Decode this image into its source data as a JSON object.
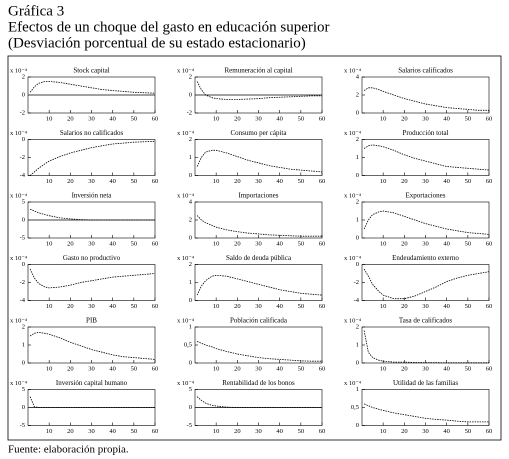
{
  "header": {
    "title": "Gráfica 3",
    "subtitle": "Efectos de un choque del gasto en educación superior",
    "subtitle2": "(Desviación porcentual de su estado estacionario)"
  },
  "footer": "Fuente: elaboración propia.",
  "chart_data": [
    {
      "type": "line",
      "title": "Stock capital",
      "scale_label": "x 10⁻⁴",
      "x": [
        1,
        3,
        5,
        8,
        10,
        15,
        20,
        25,
        30,
        35,
        40,
        45,
        50,
        55,
        60
      ],
      "values": [
        0.3,
        0.9,
        1.3,
        1.5,
        1.5,
        1.4,
        1.2,
        1.0,
        0.8,
        0.6,
        0.5,
        0.4,
        0.3,
        0.25,
        0.2
      ],
      "xlim": [
        0,
        60
      ],
      "xticks": [
        10,
        20,
        30,
        40,
        50,
        60
      ],
      "ylim": [
        -2,
        2
      ],
      "yticks": [
        -2,
        0,
        2
      ],
      "color": "#000000"
    },
    {
      "type": "line",
      "title": "Remuneración al capital",
      "scale_label": "x 10⁻⁴",
      "x": [
        1,
        3,
        5,
        8,
        10,
        15,
        20,
        25,
        30,
        35,
        40,
        45,
        50,
        55,
        60
      ],
      "values": [
        1.5,
        0.6,
        0.0,
        -0.3,
        -0.4,
        -0.5,
        -0.5,
        -0.45,
        -0.4,
        -0.3,
        -0.25,
        -0.2,
        -0.15,
        -0.1,
        -0.1
      ],
      "xlim": [
        0,
        60
      ],
      "xticks": [
        10,
        20,
        30,
        40,
        50,
        60
      ],
      "ylim": [
        -2,
        2
      ],
      "yticks": [
        -2,
        0,
        2
      ],
      "color": "#000000"
    },
    {
      "type": "line",
      "title": "Salarios calificados",
      "scale_label": "x 10⁻⁴",
      "x": [
        1,
        3,
        5,
        8,
        10,
        15,
        20,
        25,
        30,
        35,
        40,
        45,
        50,
        55,
        60
      ],
      "values": [
        2.5,
        2.8,
        2.8,
        2.6,
        2.4,
        2.0,
        1.6,
        1.3,
        1.0,
        0.8,
        0.6,
        0.5,
        0.4,
        0.3,
        0.3
      ],
      "xlim": [
        0,
        60
      ],
      "xticks": [
        10,
        20,
        30,
        40,
        50,
        60
      ],
      "ylim": [
        0,
        4
      ],
      "yticks": [
        0,
        2,
        4
      ],
      "color": "#000000"
    },
    {
      "type": "line",
      "title": "Salarios no calificados",
      "scale_label": "x 10⁻⁴",
      "x": [
        1,
        3,
        5,
        8,
        10,
        15,
        20,
        25,
        30,
        35,
        40,
        45,
        50,
        55,
        60
      ],
      "values": [
        -4,
        -3.6,
        -3.2,
        -2.7,
        -2.4,
        -1.9,
        -1.5,
        -1.2,
        -0.9,
        -0.7,
        -0.5,
        -0.4,
        -0.3,
        -0.25,
        -0.2
      ],
      "xlim": [
        0,
        60
      ],
      "xticks": [
        10,
        20,
        30,
        40,
        50,
        60
      ],
      "ylim": [
        -4,
        0
      ],
      "yticks": [
        -4,
        -2,
        0
      ],
      "color": "#000000"
    },
    {
      "type": "line",
      "title": "Consumo per cápita",
      "scale_label": "x 10⁻⁴",
      "x": [
        1,
        3,
        5,
        8,
        10,
        15,
        20,
        25,
        30,
        35,
        40,
        45,
        50,
        55,
        60
      ],
      "values": [
        0.5,
        1.0,
        1.3,
        1.4,
        1.4,
        1.25,
        1.05,
        0.85,
        0.7,
        0.55,
        0.45,
        0.35,
        0.3,
        0.25,
        0.2
      ],
      "xlim": [
        0,
        60
      ],
      "xticks": [
        10,
        20,
        30,
        40,
        50,
        60
      ],
      "ylim": [
        0,
        2
      ],
      "yticks": [
        0,
        1,
        2
      ],
      "color": "#000000"
    },
    {
      "type": "line",
      "title": "Producción total",
      "scale_label": "x 10⁻⁴",
      "x": [
        1,
        3,
        5,
        8,
        10,
        15,
        20,
        25,
        30,
        35,
        40,
        45,
        50,
        55,
        60
      ],
      "values": [
        1.5,
        1.65,
        1.7,
        1.65,
        1.6,
        1.4,
        1.15,
        0.95,
        0.8,
        0.65,
        0.5,
        0.45,
        0.4,
        0.35,
        0.3
      ],
      "xlim": [
        0,
        60
      ],
      "xticks": [
        10,
        20,
        30,
        40,
        50,
        60
      ],
      "ylim": [
        0,
        2
      ],
      "yticks": [
        0,
        1,
        2
      ],
      "color": "#000000"
    },
    {
      "type": "line",
      "title": "Inversión neta",
      "scale_label": "x 10⁻⁴",
      "x": [
        1,
        3,
        5,
        8,
        10,
        15,
        20,
        25,
        30,
        35,
        40,
        45,
        50,
        55,
        60
      ],
      "values": [
        3,
        2.5,
        2,
        1.5,
        1.2,
        0.6,
        0.3,
        0.1,
        0,
        0,
        0,
        0,
        0,
        0,
        0
      ],
      "xlim": [
        0,
        60
      ],
      "xticks": [
        10,
        20,
        30,
        40,
        50,
        60
      ],
      "ylim": [
        -5,
        5
      ],
      "yticks": [
        -5,
        0,
        5
      ],
      "color": "#000000"
    },
    {
      "type": "line",
      "title": "Importaciones",
      "scale_label": "x 10⁻⁴",
      "x": [
        1,
        3,
        5,
        8,
        10,
        15,
        20,
        25,
        30,
        35,
        40,
        45,
        50,
        55,
        60
      ],
      "values": [
        2.5,
        2.0,
        1.7,
        1.4,
        1.2,
        0.9,
        0.7,
        0.55,
        0.45,
        0.35,
        0.3,
        0.25,
        0.2,
        0.2,
        0.2
      ],
      "xlim": [
        0,
        60
      ],
      "xticks": [
        10,
        20,
        30,
        40,
        50,
        60
      ],
      "ylim": [
        0,
        4
      ],
      "yticks": [
        0,
        2,
        4
      ],
      "color": "#000000"
    },
    {
      "type": "line",
      "title": "Exportaciones",
      "scale_label": "x 10⁻⁴",
      "x": [
        1,
        3,
        5,
        8,
        10,
        15,
        20,
        25,
        30,
        35,
        40,
        45,
        50,
        55,
        60
      ],
      "values": [
        0.5,
        1.0,
        1.3,
        1.45,
        1.5,
        1.4,
        1.2,
        1.0,
        0.8,
        0.65,
        0.5,
        0.4,
        0.3,
        0.25,
        0.2
      ],
      "xlim": [
        0,
        60
      ],
      "xticks": [
        10,
        20,
        30,
        40,
        50,
        60
      ],
      "ylim": [
        0,
        2
      ],
      "yticks": [
        0,
        1,
        2
      ],
      "color": "#000000"
    },
    {
      "type": "line",
      "title": "Gasto no productivo",
      "scale_label": "x 10⁻⁴",
      "x": [
        1,
        3,
        5,
        8,
        10,
        15,
        20,
        25,
        30,
        35,
        40,
        45,
        50,
        55,
        60
      ],
      "values": [
        -0.5,
        -1.5,
        -2.1,
        -2.5,
        -2.6,
        -2.5,
        -2.3,
        -2.0,
        -1.8,
        -1.6,
        -1.4,
        -1.3,
        -1.2,
        -1.1,
        -1.0
      ],
      "xlim": [
        0,
        60
      ],
      "xticks": [
        10,
        20,
        30,
        40,
        50,
        60
      ],
      "ylim": [
        -4,
        0
      ],
      "yticks": [
        -4,
        -2,
        0
      ],
      "color": "#000000"
    },
    {
      "type": "line",
      "title": "Saldo de deuda pública",
      "scale_label": "x 10⁻⁴",
      "x": [
        1,
        3,
        5,
        8,
        10,
        15,
        20,
        25,
        30,
        35,
        40,
        45,
        50,
        55,
        60
      ],
      "values": [
        0.3,
        0.8,
        1.1,
        1.35,
        1.4,
        1.35,
        1.2,
        1.05,
        0.9,
        0.75,
        0.6,
        0.5,
        0.4,
        0.35,
        0.3
      ],
      "xlim": [
        0,
        60
      ],
      "xticks": [
        10,
        20,
        30,
        40,
        50,
        60
      ],
      "ylim": [
        0,
        2
      ],
      "yticks": [
        0,
        1,
        2
      ],
      "color": "#000000"
    },
    {
      "type": "line",
      "title": "Endeudamiento externo",
      "scale_label": "x 10⁻⁴",
      "x": [
        1,
        3,
        5,
        8,
        10,
        15,
        20,
        25,
        30,
        35,
        40,
        45,
        50,
        55,
        60
      ],
      "values": [
        -0.5,
        -1.3,
        -2.2,
        -3.0,
        -3.4,
        -3.8,
        -3.8,
        -3.5,
        -3.0,
        -2.5,
        -1.9,
        -1.5,
        -1.2,
        -1.0,
        -0.8
      ],
      "xlim": [
        0,
        60
      ],
      "xticks": [
        10,
        20,
        30,
        40,
        50,
        60
      ],
      "ylim": [
        -4,
        0
      ],
      "yticks": [
        -4,
        -2,
        0
      ],
      "color": "#000000"
    },
    {
      "type": "line",
      "title": "PIB",
      "scale_label": "x 10⁻⁴",
      "x": [
        1,
        3,
        5,
        8,
        10,
        15,
        20,
        25,
        30,
        35,
        40,
        45,
        50,
        55,
        60
      ],
      "values": [
        1.5,
        1.65,
        1.7,
        1.65,
        1.6,
        1.4,
        1.15,
        0.95,
        0.75,
        0.6,
        0.45,
        0.35,
        0.3,
        0.25,
        0.2
      ],
      "xlim": [
        0,
        60
      ],
      "xticks": [
        10,
        20,
        30,
        40,
        50,
        60
      ],
      "ylim": [
        0,
        2
      ],
      "yticks": [
        0,
        1,
        2
      ],
      "color": "#000000"
    },
    {
      "type": "line",
      "title": "Población calificada",
      "scale_label": "x 10⁻⁴",
      "x": [
        1,
        3,
        5,
        8,
        10,
        15,
        20,
        25,
        30,
        35,
        40,
        45,
        50,
        55,
        60
      ],
      "values": [
        0.6,
        0.55,
        0.5,
        0.45,
        0.4,
        0.32,
        0.25,
        0.2,
        0.15,
        0.12,
        0.1,
        0.08,
        0.06,
        0.05,
        0.05
      ],
      "xlim": [
        0,
        60
      ],
      "xticks": [
        10,
        20,
        30,
        40,
        50,
        60
      ],
      "ylim": [
        0,
        1
      ],
      "yticks": [
        0,
        {
          "value": 0.5,
          "label": "0,5"
        },
        1
      ],
      "color": "#000000"
    },
    {
      "type": "line",
      "title": "Tasa de calificados",
      "scale_label": "x 10⁻⁴",
      "x": [
        1,
        3,
        5,
        8,
        10,
        15,
        20,
        25,
        30,
        35,
        40,
        45,
        50,
        55,
        60
      ],
      "values": [
        1.8,
        0.6,
        0.3,
        0.15,
        0.1,
        0.05,
        0.05,
        0.03,
        0.02,
        0.02,
        0.01,
        0.01,
        0.01,
        0.01,
        0.01
      ],
      "xlim": [
        0,
        60
      ],
      "xticks": [
        10,
        20,
        30,
        40,
        50,
        60
      ],
      "ylim": [
        0,
        2
      ],
      "yticks": [
        0,
        1,
        2
      ],
      "color": "#000000"
    },
    {
      "type": "line",
      "title": "Inversión capital humano",
      "scale_label": "x 10⁻⁴",
      "x": [
        1,
        3,
        5,
        8,
        10,
        15,
        20,
        25,
        30,
        35,
        40,
        45,
        50,
        55,
        60
      ],
      "values": [
        3,
        0.2,
        0,
        0,
        0,
        0,
        0,
        0,
        0,
        0,
        0,
        0,
        0,
        0,
        0
      ],
      "xlim": [
        0,
        60
      ],
      "xticks": [
        10,
        20,
        30,
        40,
        50,
        60
      ],
      "ylim": [
        -5,
        5
      ],
      "yticks": [
        -5,
        0,
        5
      ],
      "color": "#000000"
    },
    {
      "type": "line",
      "title": "Rentabilidad de los bonos",
      "scale_label": "x 10⁻⁴",
      "x": [
        1,
        3,
        5,
        8,
        10,
        15,
        20,
        25,
        30,
        35,
        40,
        45,
        50,
        55,
        60
      ],
      "values": [
        3,
        2.0,
        1.2,
        0.6,
        0.4,
        0.1,
        0,
        0,
        0,
        0,
        0,
        0,
        0,
        0,
        0
      ],
      "xlim": [
        0,
        60
      ],
      "xticks": [
        10,
        20,
        30,
        40,
        50,
        60
      ],
      "ylim": [
        -5,
        5
      ],
      "yticks": [
        -5,
        0,
        5
      ],
      "color": "#000000"
    },
    {
      "type": "line",
      "title": "Utilidad de las familias",
      "scale_label": "x 10⁻⁴",
      "x": [
        1,
        3,
        5,
        8,
        10,
        15,
        20,
        25,
        30,
        35,
        40,
        45,
        50,
        55,
        60
      ],
      "values": [
        0.6,
        0.55,
        0.5,
        0.45,
        0.42,
        0.35,
        0.3,
        0.25,
        0.2,
        0.17,
        0.15,
        0.12,
        0.1,
        0.1,
        0.1
      ],
      "xlim": [
        0,
        60
      ],
      "xticks": [
        10,
        20,
        30,
        40,
        50,
        60
      ],
      "ylim": [
        0,
        1
      ],
      "yticks": [
        0,
        {
          "value": 0.5,
          "label": "0,5"
        },
        1
      ],
      "color": "#000000"
    }
  ]
}
